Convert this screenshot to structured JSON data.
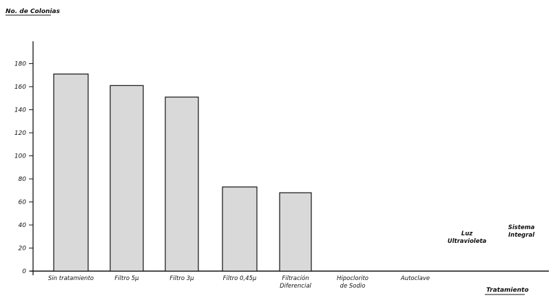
{
  "chart_data": {
    "type": "bar",
    "ylabel": "No. de Colonias",
    "xlabel": "Tratamiento",
    "ylim": [
      0,
      200
    ],
    "yticks": [
      0,
      20,
      40,
      60,
      80,
      100,
      120,
      140,
      160,
      180
    ],
    "categories": [
      [
        "Sin tratamiento"
      ],
      [
        "Filtro 5μ"
      ],
      [
        "Filtro 3μ"
      ],
      [
        "Filtro 0,45μ"
      ],
      [
        "Filtración",
        "Diferencial"
      ],
      [
        "Hipoclorito",
        "de Sodio"
      ],
      [
        "Autoclave"
      ],
      [
        "Luz",
        "Ultravioleta"
      ],
      [
        "Sistema",
        "Integral"
      ]
    ],
    "values": [
      171,
      161,
      151,
      73,
      68,
      0,
      0,
      0,
      0
    ],
    "grid": false,
    "legend": "none"
  }
}
